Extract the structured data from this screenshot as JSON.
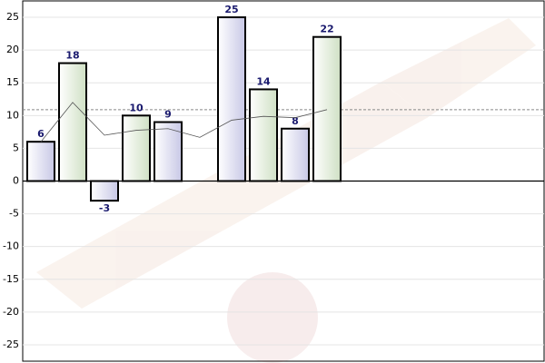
{
  "chart_data": {
    "type": "bar",
    "categories": [
      null,
      null,
      null,
      null,
      null,
      null,
      null,
      null,
      null,
      null
    ],
    "values": [
      6,
      18,
      -3,
      10,
      9,
      null,
      25,
      14,
      8,
      22
    ],
    "colors": [
      "#dcdcef",
      "#dde9d5"
    ],
    "line_values": [
      6,
      12,
      7,
      7.75,
      8,
      6.67,
      9.29,
      9.88,
      9.67,
      10.9
    ],
    "line_color": "#555555",
    "average_line": 10.9,
    "ylim": [
      -27.5,
      27.5
    ],
    "yticks": [
      -25,
      -20,
      -15,
      -10,
      -5,
      0,
      5,
      10,
      15,
      20,
      25
    ],
    "grid": true
  }
}
